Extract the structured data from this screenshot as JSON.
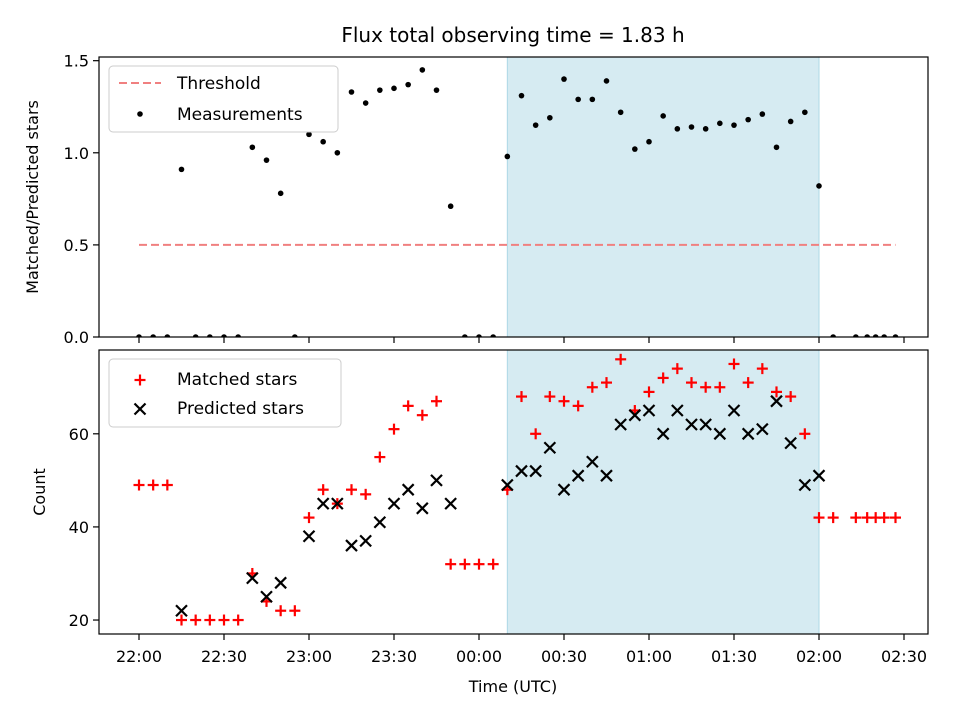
{
  "chart_data": {
    "title": "Flux total observing time = 1.83 h",
    "xlabel": "Time (UTC)",
    "x_ticks": [
      "22:00",
      "22:30",
      "23:00",
      "23:30",
      "00:00",
      "00:30",
      "01:00",
      "01:30",
      "02:00",
      "02:30"
    ],
    "shade": {
      "start": "00:10",
      "end": "02:00",
      "color": "#add8e6"
    },
    "colors": {
      "threshold": "#f08080",
      "matched": "#ff0000",
      "predicted": "#000000",
      "shade": "#add8e6"
    },
    "panels": [
      {
        "type": "scatter",
        "ylabel": "Matched/Predicted stars",
        "ylim": [
          0,
          1.52
        ],
        "y_ticks": [
          "0.0",
          "0.5",
          "1.0",
          "1.5"
        ],
        "legend_position": "upper-left",
        "threshold": {
          "name": "Threshold",
          "value": 0.5,
          "x_start": "22:00",
          "x_end": "02:27"
        },
        "series": [
          {
            "name": "Measurements",
            "marker": "dot",
            "points": [
              [
                "22:00",
                0
              ],
              [
                "22:05",
                0
              ],
              [
                "22:10",
                0
              ],
              [
                "22:15",
                0.91
              ],
              [
                "22:20",
                0
              ],
              [
                "22:25",
                0
              ],
              [
                "22:30",
                0
              ],
              [
                "22:35",
                0
              ],
              [
                "22:40",
                1.03
              ],
              [
                "22:45",
                0.96
              ],
              [
                "22:50",
                0.78
              ],
              [
                "22:55",
                0
              ],
              [
                "23:00",
                1.1
              ],
              [
                "23:05",
                1.06
              ],
              [
                "23:10",
                1.0
              ],
              [
                "23:15",
                1.33
              ],
              [
                "23:20",
                1.27
              ],
              [
                "23:25",
                1.34
              ],
              [
                "23:30",
                1.35
              ],
              [
                "23:35",
                1.37
              ],
              [
                "23:40",
                1.45
              ],
              [
                "23:45",
                1.34
              ],
              [
                "23:50",
                0.71
              ],
              [
                "23:55",
                0
              ],
              [
                "00:00",
                0
              ],
              [
                "00:05",
                0
              ],
              [
                "00:10",
                0.98
              ],
              [
                "00:15",
                1.31
              ],
              [
                "00:20",
                1.15
              ],
              [
                "00:25",
                1.19
              ],
              [
                "00:30",
                1.4
              ],
              [
                "00:35",
                1.29
              ],
              [
                "00:40",
                1.29
              ],
              [
                "00:45",
                1.39
              ],
              [
                "00:50",
                1.22
              ],
              [
                "00:55",
                1.02
              ],
              [
                "01:00",
                1.06
              ],
              [
                "01:05",
                1.2
              ],
              [
                "01:10",
                1.13
              ],
              [
                "01:15",
                1.14
              ],
              [
                "01:20",
                1.13
              ],
              [
                "01:25",
                1.16
              ],
              [
                "01:30",
                1.15
              ],
              [
                "01:35",
                1.18
              ],
              [
                "01:40",
                1.21
              ],
              [
                "01:45",
                1.03
              ],
              [
                "01:50",
                1.17
              ],
              [
                "01:55",
                1.22
              ],
              [
                "02:00",
                0.82
              ],
              [
                "02:05",
                0
              ],
              [
                "02:13",
                0
              ],
              [
                "02:17",
                0
              ],
              [
                "02:20",
                0
              ],
              [
                "02:23",
                0
              ],
              [
                "02:27",
                0
              ]
            ]
          }
        ]
      },
      {
        "type": "scatter",
        "ylabel": "Count",
        "ylim": [
          17,
          78
        ],
        "y_ticks": [
          "20",
          "40",
          "60"
        ],
        "legend_position": "upper-left",
        "series": [
          {
            "name": "Matched stars",
            "marker": "plus",
            "points": [
              [
                "22:00",
                49
              ],
              [
                "22:05",
                49
              ],
              [
                "22:10",
                49
              ],
              [
                "22:15",
                20
              ],
              [
                "22:20",
                20
              ],
              [
                "22:25",
                20
              ],
              [
                "22:30",
                20
              ],
              [
                "22:35",
                20
              ],
              [
                "22:40",
                30
              ],
              [
                "22:45",
                24
              ],
              [
                "22:50",
                22
              ],
              [
                "22:55",
                22
              ],
              [
                "23:00",
                42
              ],
              [
                "23:05",
                48
              ],
              [
                "23:10",
                45
              ],
              [
                "23:15",
                48
              ],
              [
                "23:20",
                47
              ],
              [
                "23:25",
                55
              ],
              [
                "23:30",
                61
              ],
              [
                "23:35",
                66
              ],
              [
                "23:40",
                64
              ],
              [
                "23:45",
                67
              ],
              [
                "23:50",
                32
              ],
              [
                "23:55",
                32
              ],
              [
                "00:00",
                32
              ],
              [
                "00:05",
                32
              ],
              [
                "00:10",
                48
              ],
              [
                "00:15",
                68
              ],
              [
                "00:20",
                60
              ],
              [
                "00:25",
                68
              ],
              [
                "00:30",
                67
              ],
              [
                "00:35",
                66
              ],
              [
                "00:40",
                70
              ],
              [
                "00:45",
                71
              ],
              [
                "00:50",
                76
              ],
              [
                "00:55",
                65
              ],
              [
                "01:00",
                69
              ],
              [
                "01:05",
                72
              ],
              [
                "01:10",
                74
              ],
              [
                "01:15",
                71
              ],
              [
                "01:20",
                70
              ],
              [
                "01:25",
                70
              ],
              [
                "01:30",
                75
              ],
              [
                "01:35",
                71
              ],
              [
                "01:40",
                74
              ],
              [
                "01:45",
                69
              ],
              [
                "01:50",
                68
              ],
              [
                "01:55",
                60
              ],
              [
                "02:00",
                42
              ],
              [
                "02:05",
                42
              ],
              [
                "02:13",
                42
              ],
              [
                "02:17",
                42
              ],
              [
                "02:20",
                42
              ],
              [
                "02:23",
                42
              ],
              [
                "02:27",
                42
              ]
            ]
          },
          {
            "name": "Predicted stars",
            "marker": "cross",
            "points": [
              [
                "22:15",
                22
              ],
              [
                "22:40",
                29
              ],
              [
                "22:45",
                25
              ],
              [
                "22:50",
                28
              ],
              [
                "23:00",
                38
              ],
              [
                "23:05",
                45
              ],
              [
                "23:10",
                45
              ],
              [
                "23:15",
                36
              ],
              [
                "23:20",
                37
              ],
              [
                "23:25",
                41
              ],
              [
                "23:30",
                45
              ],
              [
                "23:35",
                48
              ],
              [
                "23:40",
                44
              ],
              [
                "23:45",
                50
              ],
              [
                "23:50",
                45
              ],
              [
                "00:10",
                49
              ],
              [
                "00:15",
                52
              ],
              [
                "00:20",
                52
              ],
              [
                "00:25",
                57
              ],
              [
                "00:30",
                48
              ],
              [
                "00:35",
                51
              ],
              [
                "00:40",
                54
              ],
              [
                "00:45",
                51
              ],
              [
                "00:50",
                62
              ],
              [
                "00:55",
                64
              ],
              [
                "01:00",
                65
              ],
              [
                "01:05",
                60
              ],
              [
                "01:10",
                65
              ],
              [
                "01:15",
                62
              ],
              [
                "01:20",
                62
              ],
              [
                "01:25",
                60
              ],
              [
                "01:30",
                65
              ],
              [
                "01:35",
                60
              ],
              [
                "01:40",
                61
              ],
              [
                "01:45",
                67
              ],
              [
                "01:50",
                58
              ],
              [
                "01:55",
                49
              ],
              [
                "02:00",
                51
              ]
            ]
          }
        ]
      }
    ]
  }
}
